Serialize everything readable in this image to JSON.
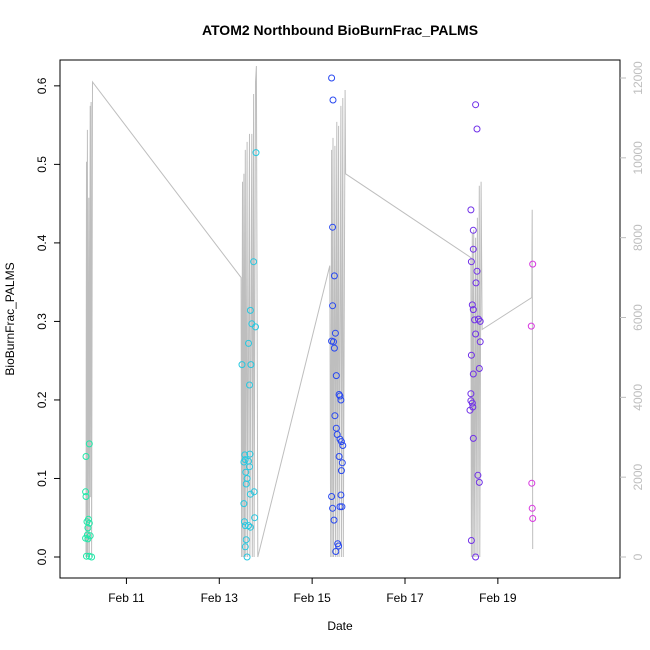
{
  "chart_data": {
    "type": "scatter",
    "title": "ATOM2 Northbound BioBurnFrac_PALMS",
    "xlabel": "Date",
    "ylabel": "BioBurnFrac_PALMS",
    "xlim": [
      10.0,
      21.2
    ],
    "ylim": [
      0.0,
      0.61
    ],
    "y2lim": [
      0,
      12000
    ],
    "x_ticks": [
      {
        "value": 11,
        "label": "Feb 11"
      },
      {
        "value": 13,
        "label": "Feb 13"
      },
      {
        "value": 15,
        "label": "Feb 15"
      },
      {
        "value": 17,
        "label": "Feb 17"
      },
      {
        "value": 19,
        "label": "Feb 19"
      }
    ],
    "y_ticks": [
      {
        "value": 0.0,
        "label": "0.0"
      },
      {
        "value": 0.1,
        "label": "0.1"
      },
      {
        "value": 0.2,
        "label": "0.2"
      },
      {
        "value": 0.3,
        "label": "0.3"
      },
      {
        "value": 0.4,
        "label": "0.4"
      },
      {
        "value": 0.5,
        "label": "0.5"
      },
      {
        "value": 0.6,
        "label": "0.6"
      }
    ],
    "y2_ticks": [
      {
        "value": 0,
        "label": "0"
      },
      {
        "value": 2000,
        "label": "2000"
      },
      {
        "value": 4000,
        "label": "4000"
      },
      {
        "value": 6000,
        "label": "6000"
      },
      {
        "value": 8000,
        "label": "8000"
      },
      {
        "value": 10000,
        "label": "10000"
      },
      {
        "value": 12000,
        "label": "12000"
      }
    ],
    "grid": false,
    "colors": {
      "axis": "#000000",
      "altitude_line": "#bebebe",
      "g1": "#20e8a8",
      "g2": "#28c8e0",
      "g3": "#2848f0",
      "g4": "#7030e8",
      "g5": "#d838e0"
    },
    "altitude_trace": [
      [
        10.13,
        0
      ],
      [
        10.14,
        9900
      ],
      [
        10.15,
        0
      ],
      [
        10.16,
        10700
      ],
      [
        10.17,
        0
      ],
      [
        10.19,
        9000
      ],
      [
        10.2,
        0
      ],
      [
        10.22,
        11300
      ],
      [
        10.23,
        1500
      ],
      [
        10.24,
        11400
      ],
      [
        10.25,
        0
      ],
      [
        10.27,
        11900
      ],
      [
        13.47,
        7000
      ],
      [
        13.48,
        0
      ],
      [
        13.5,
        9400
      ],
      [
        13.51,
        0
      ],
      [
        13.53,
        9600
      ],
      [
        13.54,
        0
      ],
      [
        13.56,
        10200
      ],
      [
        13.57,
        0
      ],
      [
        13.6,
        10400
      ],
      [
        13.61,
        0
      ],
      [
        13.65,
        10600
      ],
      [
        13.66,
        0
      ],
      [
        13.7,
        10600
      ],
      [
        13.71,
        0
      ],
      [
        13.74,
        11600
      ],
      [
        13.75,
        0
      ],
      [
        13.78,
        11900
      ],
      [
        13.8,
        12300
      ],
      [
        13.83,
        0
      ],
      [
        15.38,
        7300
      ],
      [
        15.4,
        0
      ],
      [
        15.42,
        10200
      ],
      [
        15.43,
        0
      ],
      [
        15.45,
        10500
      ],
      [
        15.46,
        0
      ],
      [
        15.49,
        10300
      ],
      [
        15.5,
        0
      ],
      [
        15.53,
        10900
      ],
      [
        15.54,
        0
      ],
      [
        15.57,
        10800
      ],
      [
        15.58,
        0
      ],
      [
        15.62,
        11300
      ],
      [
        15.63,
        0
      ],
      [
        15.66,
        11500
      ],
      [
        15.67,
        0
      ],
      [
        15.71,
        11700
      ],
      [
        15.72,
        9600
      ],
      [
        18.42,
        7500
      ],
      [
        18.43,
        0
      ],
      [
        18.45,
        8100
      ],
      [
        18.46,
        0
      ],
      [
        18.48,
        8200
      ],
      [
        18.49,
        0
      ],
      [
        18.52,
        8000
      ],
      [
        18.53,
        0
      ],
      [
        18.56,
        8500
      ],
      [
        18.57,
        0
      ],
      [
        18.6,
        9300
      ],
      [
        18.61,
        0
      ],
      [
        18.64,
        9400
      ],
      [
        18.66,
        5700
      ],
      [
        19.73,
        6500
      ],
      [
        19.74,
        8700
      ],
      [
        19.75,
        200
      ]
    ],
    "series": [
      {
        "color": "g1",
        "points": [
          [
            10.13,
            0.128
          ],
          [
            10.12,
            0.083
          ],
          [
            10.13,
            0.077
          ],
          [
            10.2,
            0.144
          ],
          [
            10.12,
            0.024
          ],
          [
            10.17,
            0.023
          ],
          [
            10.22,
            0.027
          ],
          [
            10.15,
            0.045
          ],
          [
            10.2,
            0.043
          ],
          [
            10.17,
            0.037
          ],
          [
            10.14,
            0.001
          ],
          [
            10.2,
            0.001
          ],
          [
            10.25,
            0.0
          ],
          [
            10.16,
            0.028
          ],
          [
            10.18,
            0.048
          ]
        ]
      },
      {
        "color": "g2",
        "points": [
          [
            13.49,
            0.245
          ],
          [
            13.55,
            0.13
          ],
          [
            13.56,
            0.124
          ],
          [
            13.53,
            0.121
          ],
          [
            13.57,
            0.108
          ],
          [
            13.6,
            0.1
          ],
          [
            13.58,
            0.093
          ],
          [
            13.53,
            0.068
          ],
          [
            13.54,
            0.045
          ],
          [
            13.56,
            0.04
          ],
          [
            13.56,
            0.013
          ],
          [
            13.58,
            0.022
          ],
          [
            13.6,
            0.0
          ],
          [
            13.63,
            0.04
          ],
          [
            13.67,
            0.038
          ],
          [
            13.63,
            0.122
          ],
          [
            13.66,
            0.131
          ],
          [
            13.65,
            0.115
          ],
          [
            13.67,
            0.08
          ],
          [
            13.63,
            0.272
          ],
          [
            13.65,
            0.219
          ],
          [
            13.68,
            0.245
          ],
          [
            13.67,
            0.314
          ],
          [
            13.7,
            0.297
          ],
          [
            13.74,
            0.376
          ],
          [
            13.79,
            0.515
          ],
          [
            13.78,
            0.293
          ],
          [
            13.75,
            0.083
          ],
          [
            13.76,
            0.05
          ]
        ]
      },
      {
        "color": "g3",
        "points": [
          [
            15.42,
            0.61
          ],
          [
            15.45,
            0.582
          ],
          [
            15.44,
            0.42
          ],
          [
            15.48,
            0.358
          ],
          [
            15.44,
            0.32
          ],
          [
            15.42,
            0.275
          ],
          [
            15.46,
            0.274
          ],
          [
            15.5,
            0.285
          ],
          [
            15.48,
            0.266
          ],
          [
            15.52,
            0.231
          ],
          [
            15.58,
            0.207
          ],
          [
            15.6,
            0.205
          ],
          [
            15.62,
            0.2
          ],
          [
            15.49,
            0.18
          ],
          [
            15.52,
            0.164
          ],
          [
            15.54,
            0.156
          ],
          [
            15.6,
            0.15
          ],
          [
            15.63,
            0.147
          ],
          [
            15.66,
            0.142
          ],
          [
            15.58,
            0.128
          ],
          [
            15.65,
            0.12
          ],
          [
            15.63,
            0.11
          ],
          [
            15.42,
            0.077
          ],
          [
            15.44,
            0.062
          ],
          [
            15.47,
            0.047
          ],
          [
            15.62,
            0.079
          ],
          [
            15.6,
            0.064
          ],
          [
            15.64,
            0.064
          ],
          [
            15.55,
            0.017
          ],
          [
            15.57,
            0.014
          ],
          [
            15.51,
            0.007
          ]
        ]
      },
      {
        "color": "g4",
        "points": [
          [
            18.42,
            0.442
          ],
          [
            18.47,
            0.416
          ],
          [
            18.43,
            0.376
          ],
          [
            18.47,
            0.392
          ],
          [
            18.55,
            0.364
          ],
          [
            18.53,
            0.349
          ],
          [
            18.45,
            0.321
          ],
          [
            18.47,
            0.315
          ],
          [
            18.5,
            0.302
          ],
          [
            18.58,
            0.303
          ],
          [
            18.62,
            0.3
          ],
          [
            18.52,
            0.284
          ],
          [
            18.62,
            0.274
          ],
          [
            18.43,
            0.257
          ],
          [
            18.47,
            0.233
          ],
          [
            18.6,
            0.24
          ],
          [
            18.42,
            0.208
          ],
          [
            18.45,
            0.196
          ],
          [
            18.4,
            0.187
          ],
          [
            18.42,
            0.199
          ],
          [
            18.46,
            0.191
          ],
          [
            18.47,
            0.151
          ],
          [
            18.57,
            0.104
          ],
          [
            18.6,
            0.095
          ],
          [
            18.43,
            0.021
          ],
          [
            18.52,
            0.0
          ],
          [
            18.52,
            0.576
          ],
          [
            18.55,
            0.545
          ]
        ]
      },
      {
        "color": "g5",
        "points": [
          [
            19.75,
            0.373
          ],
          [
            19.72,
            0.294
          ],
          [
            19.73,
            0.094
          ],
          [
            19.74,
            0.062
          ],
          [
            19.75,
            0.049
          ]
        ]
      }
    ]
  }
}
